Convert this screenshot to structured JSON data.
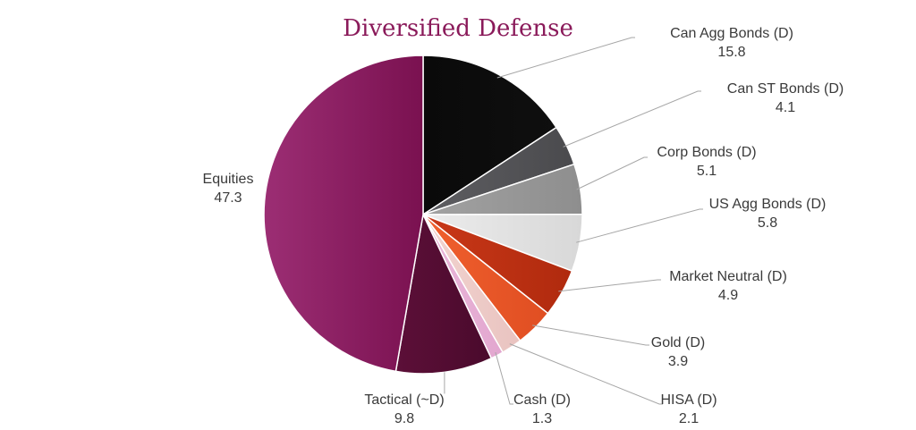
{
  "chart_data": {
    "type": "pie",
    "title": "Diversified Defense",
    "slices": [
      {
        "label": "Can Agg Bonds (D)",
        "value": 15.8,
        "color": "#0f0f0f",
        "color2": "#0a0a0a"
      },
      {
        "label": "Can ST Bonds (D)",
        "value": 4.1,
        "color": "#4a4a4d",
        "color2": "#5e5e62"
      },
      {
        "label": "Corp Bonds (D)",
        "value": 5.1,
        "color": "#8e8e8e",
        "color2": "#a2a2a2"
      },
      {
        "label": "US Agg Bonds (D)",
        "value": 5.8,
        "color": "#d8d8d8",
        "color2": "#ececec"
      },
      {
        "label": "Market Neutral (D)",
        "value": 4.9,
        "color": "#b02a0e",
        "color2": "#c93818"
      },
      {
        "label": "Gold (D)",
        "value": 3.9,
        "color": "#e04e22",
        "color2": "#f0602e"
      },
      {
        "label": "HISA (D)",
        "value": 2.1,
        "color": "#e9c3c0",
        "color2": "#f2d4d0"
      },
      {
        "label": "Cash (D)",
        "value": 1.3,
        "color": "#e2a6cf",
        "color2": "#eab8da"
      },
      {
        "label": "Tactical (~D)",
        "value": 9.8,
        "color": "#4a0a2c",
        "color2": "#5c0f38"
      },
      {
        "label": "Equities",
        "value": 47.3,
        "color": "#7a1150",
        "color2": "#9c2e74"
      }
    ]
  }
}
